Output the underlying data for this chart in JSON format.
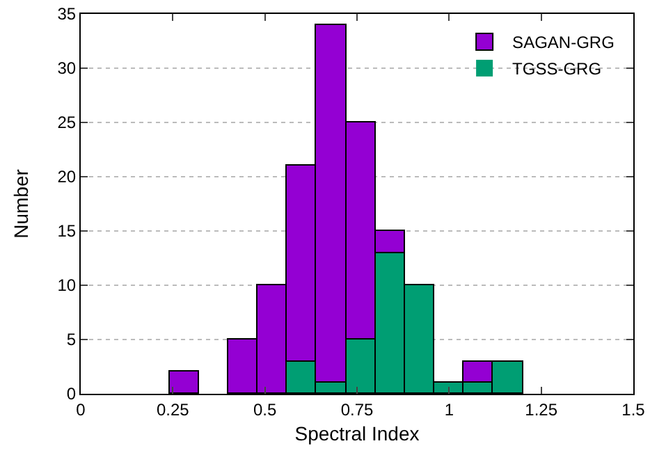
{
  "chart_data": {
    "type": "histogram",
    "xlabel": "Spectral Index",
    "ylabel": "Number",
    "bins": [
      0.24,
      0.32,
      0.4,
      0.48,
      0.56,
      0.64,
      0.72,
      0.8,
      0.88,
      0.96,
      1.04,
      1.12,
      1.2
    ],
    "series": [
      {
        "name": "SAGAN-GRG",
        "color": "#9400d3",
        "values": [
          2,
          0,
          5,
          10,
          21,
          34,
          25,
          15,
          null,
          null,
          3,
          null
        ]
      },
      {
        "name": "TGSS-GRG",
        "color": "#009e73",
        "values": [
          0,
          0,
          0,
          0,
          3,
          1,
          5,
          13,
          10,
          1,
          1,
          3
        ]
      }
    ],
    "xlim": [
      0,
      1.5
    ],
    "xticks": [
      0,
      0.25,
      0.5,
      0.75,
      1,
      1.25,
      1.5
    ],
    "ylim": [
      0,
      35
    ],
    "yticks": [
      0,
      5,
      10,
      15,
      20,
      25,
      30,
      35
    ],
    "grid": "y",
    "legend": "top right"
  }
}
